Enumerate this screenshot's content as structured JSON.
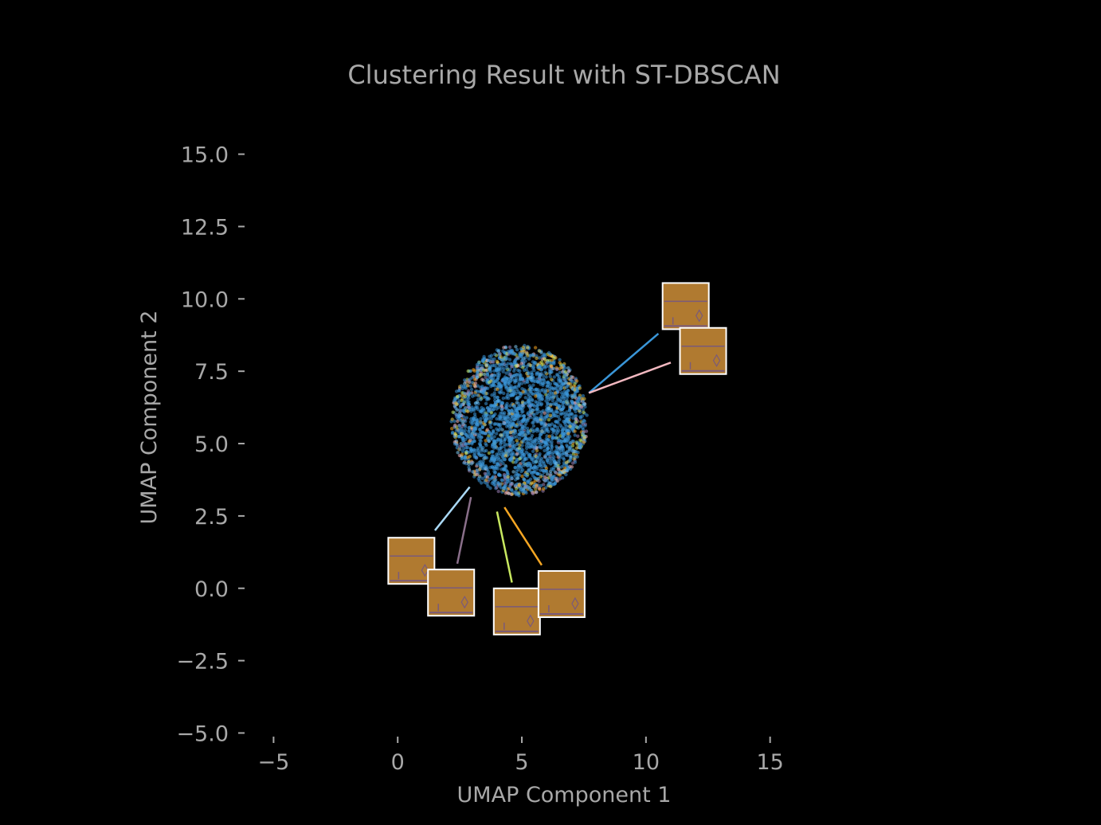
{
  "chart_data": {
    "type": "scatter",
    "title": "Clustering Result with ST-DBSCAN",
    "xlabel": "UMAP Component 1",
    "ylabel": "UMAP Component 2",
    "xlim": [
      -6.2,
      19.6
    ],
    "ylim": [
      -5.4,
      16.2
    ],
    "x_ticks": [
      -5,
      0,
      5,
      10,
      15
    ],
    "x_tick_labels": [
      "−5",
      "0",
      "5",
      "10",
      "15"
    ],
    "y_ticks": [
      -5.0,
      -2.5,
      0.0,
      2.5,
      5.0,
      7.5,
      10.0,
      12.5,
      15.0
    ],
    "y_tick_labels": [
      "−5.0",
      "−2.5",
      "0.0",
      "2.5",
      "5.0",
      "7.5",
      "10.0",
      "12.5",
      "15.0"
    ],
    "grid": false,
    "background": "#000000",
    "text_color": "#a8a8a8",
    "point_cloud": {
      "center": [
        4.9,
        5.8
      ],
      "radius_x": 2.75,
      "radius_y": 2.6,
      "dominant_color": "#3a96d8",
      "minor_colors": [
        "#f5a623",
        "#e8c84a",
        "#c8e860",
        "#f2b8c0",
        "#9a7fb5",
        "#7ec8f0"
      ]
    },
    "thumbnail_annotations": [
      {
        "from": [
          7.7,
          6.75
        ],
        "to": [
          10.5,
          8.8
        ],
        "image_center": [
          11.6,
          9.75
        ],
        "line_color": "#3a96d8"
      },
      {
        "from": [
          7.7,
          6.75
        ],
        "to": [
          11.0,
          7.8
        ],
        "image_center": [
          12.3,
          8.2
        ],
        "line_color": "#f2b8c0"
      },
      {
        "from": [
          2.9,
          3.5
        ],
        "to": [
          1.5,
          2.0
        ],
        "image_center": [
          0.55,
          0.95
        ],
        "line_color": "#a9d8f5"
      },
      {
        "from": [
          2.95,
          3.15
        ],
        "to": [
          2.4,
          0.85
        ],
        "image_center": [
          2.15,
          -0.15
        ],
        "line_color": "#8a6f8a"
      },
      {
        "from": [
          4.0,
          2.65
        ],
        "to": [
          4.6,
          0.2
        ],
        "image_center": [
          4.8,
          -0.8
        ],
        "line_color": "#c8e860"
      },
      {
        "from": [
          4.3,
          2.8
        ],
        "to": [
          5.8,
          0.8
        ],
        "image_center": [
          6.6,
          -0.2
        ],
        "line_color": "#f5a623"
      }
    ],
    "thumbnail_style": {
      "fill": "#b07a30",
      "border": "#ffffff",
      "line_color": "#7a5a7a"
    }
  }
}
